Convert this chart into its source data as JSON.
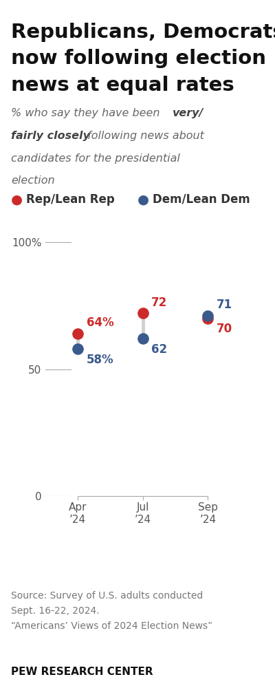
{
  "title_line1": "Republicans, Democrats",
  "title_line2": "now following election",
  "title_line3": "news at equal rates",
  "rep_color": "#cc2a2a",
  "dem_color": "#3a5a8c",
  "connector_color": "#d0d0d0",
  "categories": [
    "Apr\n’24",
    "Jul\n’24",
    "Sep\n’24"
  ],
  "x_positions": [
    1,
    2,
    3
  ],
  "rep_values": [
    64,
    72,
    70
  ],
  "dem_values": [
    58,
    62,
    71
  ],
  "rep_labels": [
    "64%",
    "72",
    "70"
  ],
  "dem_labels": [
    "58%",
    "62",
    "71"
  ],
  "ylim": [
    0,
    110
  ],
  "yticks": [
    0,
    50,
    100
  ],
  "ytick_labels": [
    "0",
    "50",
    "100%"
  ],
  "legend_rep": "Rep/Lean Rep",
  "legend_dem": "Dem/Lean Dem",
  "source_line1": "Source: Survey of U.S. adults conducted",
  "source_line2": "Sept. 16-22, 2024.",
  "source_line3": "“Americans’ Views of 2024 Election News”",
  "footer": "PEW RESEARCH CENTER",
  "background_color": "#ffffff",
  "title_fontsize": 21,
  "subtitle_fontsize": 11.5,
  "legend_fontsize": 12,
  "label_fontsize": 12,
  "tick_fontsize": 11,
  "source_fontsize": 10,
  "footer_fontsize": 11,
  "marker_size": 120
}
